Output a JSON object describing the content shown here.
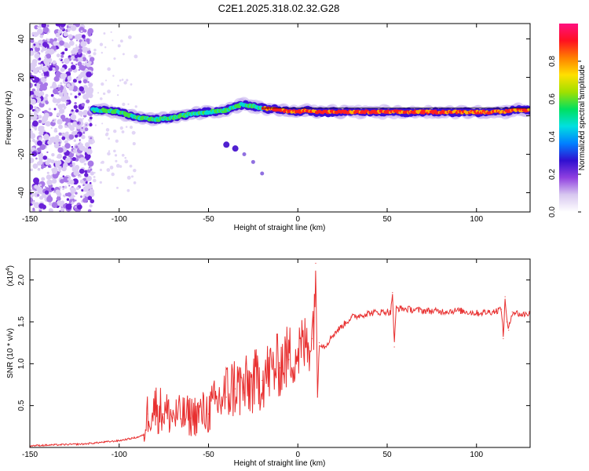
{
  "title": "C2E1.2025.318.02.32.G28",
  "chart_data": [
    {
      "type": "heatmap",
      "title": "C2E1.2025.318.02.32.G28",
      "xlabel": "Height of straight line (km)",
      "ylabel": "Frequency (Hz)",
      "xlim": [
        -150,
        130
      ],
      "ylim": [
        -50,
        48
      ],
      "xticks": [
        -150,
        -100,
        -50,
        0,
        50,
        100
      ],
      "yticks": [
        -40,
        -20,
        0,
        20,
        40
      ],
      "colorbar": {
        "label": "Normalized spectral amplitude",
        "range": [
          0,
          1
        ],
        "ticks": [
          "0.0",
          "0.2",
          "0.4",
          "0.6",
          "0.8"
        ],
        "colormap": [
          "#ffffff",
          "#d8c8f0",
          "#9040e0",
          "#3010d0",
          "#0080ff",
          "#00e0e0",
          "#00e060",
          "#a0e000",
          "#ffe000",
          "#ff8000",
          "#ff1020",
          "#ff1080"
        ]
      },
      "frequency_trace": {
        "x": [
          -115,
          -110,
          -100,
          -90,
          -80,
          -70,
          -60,
          -50,
          -40,
          -35,
          -30,
          -25,
          -20,
          -10,
          0,
          5,
          10,
          20,
          30,
          48,
          60,
          70,
          80,
          90,
          100,
          110,
          115,
          120,
          130
        ],
        "y": [
          3,
          3,
          2,
          -1,
          -2,
          -1,
          1,
          2,
          3,
          5,
          6,
          5,
          4,
          3,
          2,
          3,
          2,
          2,
          2,
          2,
          2,
          2,
          2,
          2,
          2,
          2,
          2,
          3,
          3
        ]
      },
      "satellite_trace": {
        "x": [
          -40,
          -35,
          -30,
          -25,
          -20
        ],
        "y": [
          -15,
          -17,
          -20,
          -24,
          -30
        ]
      },
      "noise_region": {
        "x_range": [
          -150,
          -115
        ],
        "y_range": [
          -50,
          48
        ]
      }
    },
    {
      "type": "line",
      "xlabel": "Height of straight line (km)",
      "ylabel": "SNR (10 * v/v)",
      "exponent_label": "(x10",
      "exponent_power": "4",
      "exponent_close": ")",
      "xlim": [
        -150,
        130
      ],
      "ylim": [
        0,
        2.25
      ],
      "xticks": [
        -150,
        -100,
        -50,
        0,
        50,
        100
      ],
      "yticks": [
        "0.5",
        "1.0",
        "1.5",
        "2.0"
      ],
      "series": [
        {
          "name": "SNR",
          "color": "#e83030",
          "x": [
            -150,
            -120,
            -100,
            -90,
            -86,
            -84,
            -80,
            -75,
            -70,
            -60,
            -50,
            -40,
            -35,
            -30,
            -20,
            -10,
            -5,
            0,
            5,
            8,
            9,
            10,
            11,
            12,
            15,
            20,
            25,
            30,
            40,
            50,
            52,
            53,
            54,
            55,
            60,
            70,
            80,
            90,
            100,
            110,
            114,
            115,
            116,
            117,
            118,
            120,
            125,
            130
          ],
          "y": [
            0.02,
            0.04,
            0.08,
            0.12,
            0.15,
            0.4,
            0.45,
            0.4,
            0.35,
            0.35,
            0.4,
            0.6,
            0.7,
            0.65,
            0.8,
            0.95,
            1.05,
            1.1,
            1.2,
            1.3,
            1.55,
            2.2,
            0.6,
            1.25,
            1.2,
            1.35,
            1.45,
            1.55,
            1.6,
            1.62,
            1.6,
            1.85,
            1.2,
            1.66,
            1.65,
            1.63,
            1.62,
            1.63,
            1.6,
            1.62,
            1.65,
            1.3,
            1.8,
            1.5,
            1.4,
            1.62,
            1.58,
            1.6
          ]
        }
      ]
    }
  ]
}
